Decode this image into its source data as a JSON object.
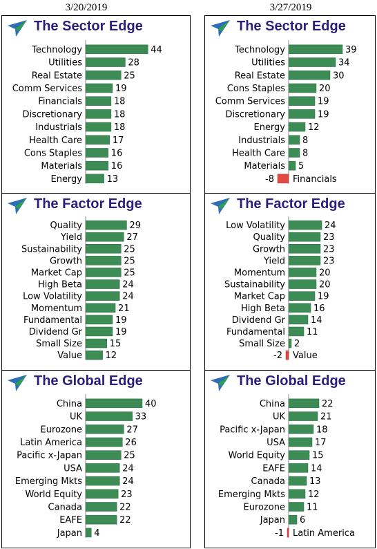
{
  "dates": [
    "3/20/2019",
    "3/27/2019"
  ],
  "colors": {
    "title": "#2a1f7a",
    "positive_bar": "#3d8b55",
    "negative_bar": "#e04a43",
    "logo_blue": "#2f6fb5",
    "logo_green": "#2aa24a"
  },
  "icons": {
    "logo": "arrow-logo-icon"
  },
  "panels": [
    {
      "title": "The Sector Edge",
      "date": "3/20/2019"
    },
    {
      "title": "The Sector Edge",
      "date": "3/27/2019"
    },
    {
      "title": "The Factor Edge",
      "date": "3/20/2019"
    },
    {
      "title": "The Factor Edge",
      "date": "3/27/2019"
    },
    {
      "title": "The Global Edge",
      "date": "3/20/2019"
    },
    {
      "title": "The Global Edge",
      "date": "3/27/2019"
    }
  ],
  "chart_data": [
    {
      "type": "bar",
      "orientation": "horizontal",
      "title": "The Sector Edge",
      "categories": [
        "Technology",
        "Utilities",
        "Real Estate",
        "Comm Services",
        "Financials",
        "Discretionary",
        "Industrials",
        "Health Care",
        "Cons Staples",
        "Materials",
        "Energy"
      ],
      "values": [
        44,
        28,
        25,
        19,
        18,
        18,
        18,
        17,
        16,
        16,
        13
      ]
    },
    {
      "type": "bar",
      "orientation": "horizontal",
      "title": "The Sector Edge",
      "categories": [
        "Technology",
        "Utilities",
        "Real Estate",
        "Cons Staples",
        "Comm Services",
        "Discretionary",
        "Energy",
        "Industrials",
        "Health Care",
        "Materials",
        "Financials"
      ],
      "values": [
        39,
        34,
        30,
        20,
        19,
        19,
        12,
        8,
        8,
        5,
        -8
      ]
    },
    {
      "type": "bar",
      "orientation": "horizontal",
      "title": "The Factor Edge",
      "categories": [
        "Quality",
        "Yield",
        "Sustainability",
        "Growth",
        "Market Cap",
        "High Beta",
        "Low Volatility",
        "Momentum",
        "Fundamental",
        "Dividend Gr",
        "Small Size",
        "Value"
      ],
      "values": [
        29,
        27,
        25,
        25,
        25,
        24,
        24,
        21,
        19,
        19,
        15,
        12
      ]
    },
    {
      "type": "bar",
      "orientation": "horizontal",
      "title": "The Factor Edge",
      "categories": [
        "Low Volatility",
        "Quality",
        "Growth",
        "Yield",
        "Momentum",
        "Sustainability",
        "Market Cap",
        "High Beta",
        "Dividend Gr",
        "Fundamental",
        "Small Size",
        "Value"
      ],
      "values": [
        24,
        23,
        23,
        23,
        20,
        20,
        19,
        16,
        14,
        11,
        2,
        -2
      ]
    },
    {
      "type": "bar",
      "orientation": "horizontal",
      "title": "The Global Edge",
      "categories": [
        "China",
        "UK",
        "Eurozone",
        "Latin America",
        "Pacific x-Japan",
        "USA",
        "Emerging Mkts",
        "World Equity",
        "Canada",
        "EAFE",
        "Japan"
      ],
      "values": [
        40,
        33,
        27,
        26,
        25,
        24,
        24,
        23,
        22,
        22,
        4
      ]
    },
    {
      "type": "bar",
      "orientation": "horizontal",
      "title": "The Global Edge",
      "categories": [
        "China",
        "UK",
        "Pacific x-Japan",
        "USA",
        "World Equity",
        "EAFE",
        "Canada",
        "Emerging Mkts",
        "Eurozone",
        "Japan",
        "Latin America"
      ],
      "values": [
        22,
        21,
        18,
        17,
        15,
        14,
        13,
        12,
        11,
        6,
        -1
      ]
    }
  ]
}
